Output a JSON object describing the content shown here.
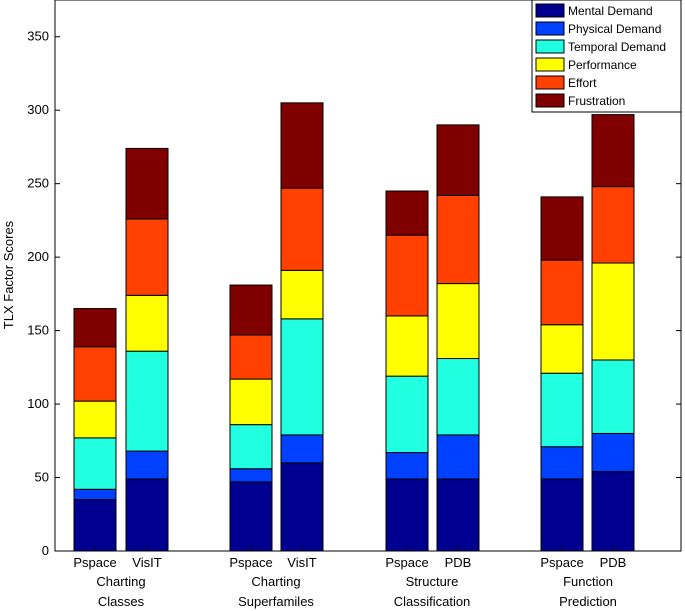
{
  "chart_data": {
    "type": "bar",
    "stacked": true,
    "ylabel": "TLX Factor Scores",
    "ylim": [
      0,
      375
    ],
    "yticks": [
      0,
      50,
      100,
      150,
      200,
      250,
      300,
      350
    ],
    "legend_position": "top-right",
    "groups": [
      {
        "label_line1": "Charting",
        "label_line2": "Classes",
        "bars": [
          "Pspace",
          "VisIT"
        ]
      },
      {
        "label_line1": "Charting",
        "label_line2": "Superfamiles",
        "bars": [
          "Pspace",
          "VisIT"
        ]
      },
      {
        "label_line1": "Structure",
        "label_line2": "Classification",
        "bars": [
          "Pspace",
          "PDB"
        ]
      },
      {
        "label_line1": "Function",
        "label_line2": "Prediction",
        "bars": [
          "Pspace",
          "PDB"
        ]
      }
    ],
    "categories": [
      "Pspace",
      "VisIT",
      "Pspace",
      "VisIT",
      "Pspace",
      "PDB",
      "Pspace",
      "PDB"
    ],
    "series": [
      {
        "name": "Mental Demand",
        "color": "#000090",
        "values": [
          35,
          49,
          47,
          60,
          49,
          49,
          49,
          54
        ]
      },
      {
        "name": "Physical Demand",
        "color": "#0040ff",
        "values": [
          7,
          19,
          9,
          19,
          18,
          30,
          22,
          26
        ]
      },
      {
        "name": "Temporal Demand",
        "color": "#20ffdf",
        "values": [
          35,
          68,
          30,
          79,
          52,
          52,
          50,
          50
        ]
      },
      {
        "name": "Performance",
        "color": "#ffff00",
        "values": [
          25,
          38,
          31,
          33,
          41,
          51,
          33,
          66
        ]
      },
      {
        "name": "Effort",
        "color": "#ff4000",
        "values": [
          37,
          52,
          30,
          56,
          55,
          60,
          44,
          52
        ]
      },
      {
        "name": "Frustration",
        "color": "#800000",
        "values": [
          26,
          48,
          34,
          58,
          30,
          48,
          43,
          49
        ]
      }
    ]
  }
}
